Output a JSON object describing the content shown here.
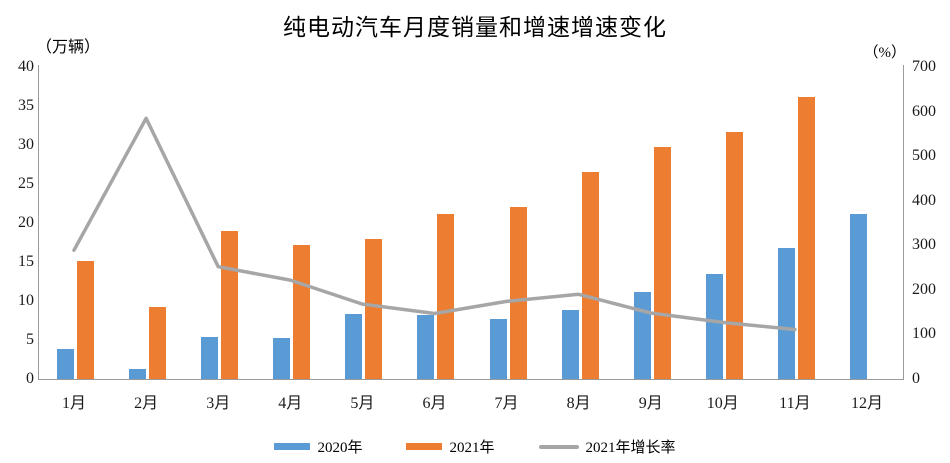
{
  "chart_data": {
    "type": "bar+line",
    "title": "纯电动汽车月度销量和增速增速变化",
    "left_ylabel": "（万辆）",
    "right_ylabel": "（%）",
    "left_ylim": [
      0,
      40
    ],
    "right_ylim": [
      0,
      700
    ],
    "left_ticks": [
      0,
      5,
      10,
      15,
      20,
      25,
      30,
      35,
      40
    ],
    "right_ticks": [
      0,
      100,
      200,
      300,
      400,
      500,
      600,
      700
    ],
    "grid": false,
    "legend_position": "bottom",
    "categories": [
      "1月",
      "2月",
      "3月",
      "4月",
      "5月",
      "6月",
      "7月",
      "8月",
      "9月",
      "10月",
      "11月",
      "12月"
    ],
    "series": [
      {
        "name": "2020年",
        "type": "bar",
        "axis": "left",
        "color": "#5b9bd5",
        "values": [
          3.9,
          1.3,
          5.4,
          5.2,
          8.3,
          8.2,
          7.7,
          8.8,
          11.2,
          13.4,
          16.8,
          21.2
        ]
      },
      {
        "name": "2021年",
        "type": "bar",
        "axis": "left",
        "color": "#ed7d31",
        "values": [
          15.1,
          9.2,
          19.0,
          17.2,
          17.9,
          21.1,
          22.1,
          26.5,
          29.8,
          31.7,
          36.2,
          null
        ]
      },
      {
        "name": "2021年增长率",
        "type": "line",
        "axis": "right",
        "color": "#a6a6a6",
        "values": [
          289,
          585,
          252,
          222,
          168,
          147,
          174,
          190,
          148,
          127,
          111,
          null
        ]
      }
    ]
  }
}
